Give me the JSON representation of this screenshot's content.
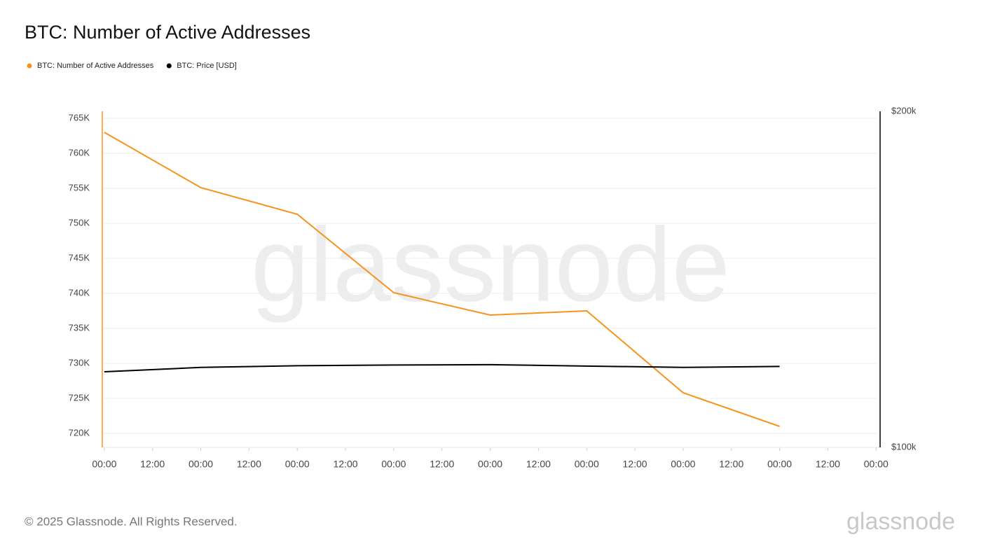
{
  "chart_data": {
    "type": "line",
    "title": "BTC: Number of Active Addresses",
    "watermark": "glassnode",
    "footer": "© 2025 Glassnode. All Rights Reserved.",
    "logo": "glassnode",
    "x": [
      0,
      24,
      48,
      72,
      96,
      120,
      144,
      168
    ],
    "xlim": [
      -0.5,
      193
    ],
    "xticks": [
      {
        "value": 0,
        "label": "00:00"
      },
      {
        "value": 12,
        "label": "12:00"
      },
      {
        "value": 24,
        "label": "00:00"
      },
      {
        "value": 36,
        "label": "12:00"
      },
      {
        "value": 48,
        "label": "00:00"
      },
      {
        "value": 60,
        "label": "12:00"
      },
      {
        "value": 72,
        "label": "00:00"
      },
      {
        "value": 84,
        "label": "12:00"
      },
      {
        "value": 96,
        "label": "00:00"
      },
      {
        "value": 108,
        "label": "12:00"
      },
      {
        "value": 120,
        "label": "00:00"
      },
      {
        "value": 132,
        "label": "12:00"
      },
      {
        "value": 144,
        "label": "00:00"
      },
      {
        "value": 156,
        "label": "12:00"
      },
      {
        "value": 168,
        "label": "00:00"
      },
      {
        "value": 180,
        "label": "12:00"
      },
      {
        "value": 192,
        "label": "00:00"
      }
    ],
    "ylim": [
      718000,
      766000
    ],
    "yticks": [
      {
        "value": 720000,
        "label": "720K"
      },
      {
        "value": 725000,
        "label": "725K"
      },
      {
        "value": 730000,
        "label": "730K"
      },
      {
        "value": 735000,
        "label": "735K"
      },
      {
        "value": 740000,
        "label": "740K"
      },
      {
        "value": 745000,
        "label": "745K"
      },
      {
        "value": 750000,
        "label": "750K"
      },
      {
        "value": 755000,
        "label": "755K"
      },
      {
        "value": 760000,
        "label": "760K"
      },
      {
        "value": 765000,
        "label": "765K"
      }
    ],
    "y2lim": [
      100000,
      200000
    ],
    "y2ticks": [
      {
        "value": 100000,
        "label": "$100k"
      },
      {
        "value": 200000,
        "label": "$200k"
      }
    ],
    "grid": true,
    "series": [
      {
        "name": "BTC: Number of Active Addresses",
        "color": "#f7931a",
        "axis": "y",
        "values": [
          763000,
          755100,
          751300,
          740100,
          736900,
          737500,
          725800,
          721000
        ]
      },
      {
        "name": "BTC: Price [USD]",
        "color": "#000000",
        "axis": "y2",
        "values": [
          122500,
          123800,
          124300,
          124500,
          124600,
          124200,
          123800,
          124100
        ]
      }
    ]
  }
}
